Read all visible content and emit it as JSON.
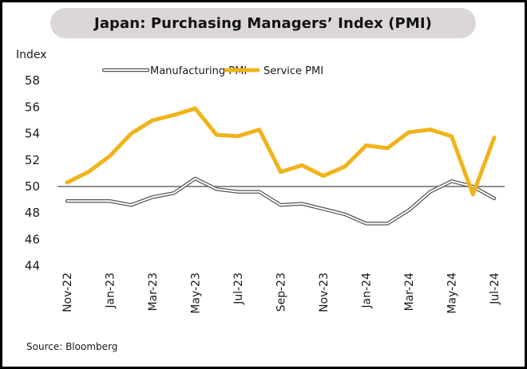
{
  "chart_data": {
    "type": "line",
    "title": "Japan: Purchasing Managers’ Index (PMI)",
    "ylabel": "Index",
    "xlabel": "",
    "ylim": [
      44,
      58
    ],
    "yticks": [
      44,
      46,
      48,
      50,
      52,
      54,
      56,
      58
    ],
    "reference_line": 50,
    "x": [
      "Nov-22",
      "Dec-22",
      "Jan-23",
      "Feb-23",
      "Mar-23",
      "Apr-23",
      "May-23",
      "Jun-23",
      "Jul-23",
      "Aug-23",
      "Sep-23",
      "Oct-23",
      "Nov-23",
      "Dec-23",
      "Jan-24",
      "Feb-24",
      "Mar-24",
      "Apr-24",
      "May-24",
      "Jun-24",
      "Jul-24"
    ],
    "xticks": [
      "Nov-22",
      "Jan-23",
      "Mar-23",
      "May-23",
      "Jul-23",
      "Sep-23",
      "Nov-23",
      "Jan-24",
      "Mar-24",
      "May-24",
      "Jul-24"
    ],
    "series": [
      {
        "name": "Manufacturing PMI",
        "color": "#5a5252",
        "style": "double-outline",
        "values": [
          48.9,
          48.9,
          48.9,
          48.6,
          49.2,
          49.5,
          50.6,
          49.8,
          49.6,
          49.6,
          48.6,
          48.7,
          48.3,
          47.9,
          47.2,
          47.2,
          48.2,
          49.6,
          50.4,
          50.0,
          49.1
        ]
      },
      {
        "name": "Service PMI",
        "color": "#f0b41a",
        "style": "solid",
        "values": [
          50.3,
          51.1,
          52.3,
          54.0,
          55.0,
          55.4,
          55.9,
          53.9,
          53.8,
          54.3,
          51.1,
          51.6,
          50.8,
          51.5,
          53.1,
          52.9,
          54.1,
          54.3,
          53.8,
          49.4,
          53.7
        ]
      }
    ],
    "legend": "top-center",
    "grid": false
  },
  "source": "Source: Bloomberg"
}
